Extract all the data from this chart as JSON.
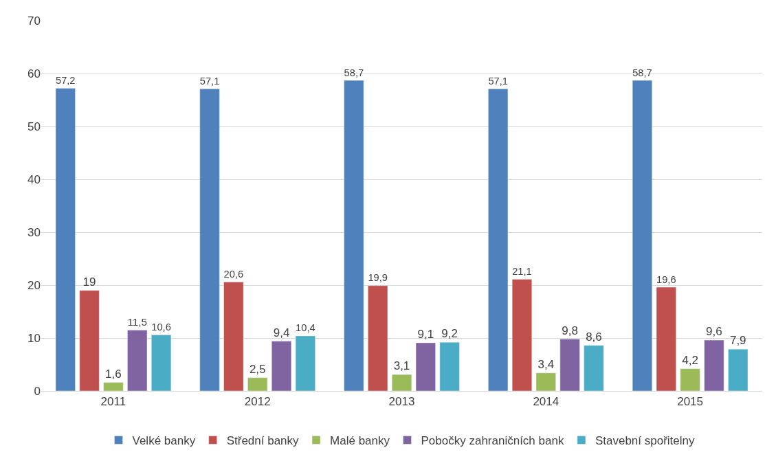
{
  "chart_data": {
    "type": "bar",
    "categories": [
      "2011",
      "2012",
      "2013",
      "2014",
      "2015"
    ],
    "series": [
      {
        "name": "Velké banky",
        "color": "#4f81bd",
        "values": [
          57.2,
          57.1,
          58.7,
          57.1,
          58.7
        ],
        "value_labels": [
          "57,2",
          "57,1",
          "58,7",
          "57,1",
          "58,7"
        ]
      },
      {
        "name": "Střední banky",
        "color": "#c0504d",
        "values": [
          19,
          20.6,
          19.9,
          21.1,
          19.6
        ],
        "value_labels": [
          "19",
          "20,6",
          "19,9",
          "21,1",
          "19,6"
        ]
      },
      {
        "name": "Malé banky",
        "color": "#9bbb59",
        "values": [
          1.6,
          2.5,
          3.1,
          3.4,
          4.2
        ],
        "value_labels": [
          "1,6",
          "2,5",
          "3,1",
          "3,4",
          "4,2"
        ]
      },
      {
        "name": "Pobočky zahraničních bank",
        "color": "#8064a2",
        "values": [
          11.5,
          9.4,
          9.1,
          9.8,
          9.6
        ],
        "value_labels": [
          "11,5",
          "9,4",
          "9,1",
          "9,8",
          "9,6"
        ]
      },
      {
        "name": "Stavební spořitelny",
        "color": "#4bacc6",
        "values": [
          10.6,
          10.4,
          9.2,
          8.6,
          7.9
        ],
        "value_labels": [
          "10,6",
          "10,4",
          "9,2",
          "8,6",
          "7,9"
        ]
      }
    ],
    "ylim": [
      0,
      70
    ],
    "yticks": [
      0,
      10,
      20,
      30,
      40,
      50,
      60,
      70
    ],
    "grid": "y",
    "legend": "bottom"
  }
}
